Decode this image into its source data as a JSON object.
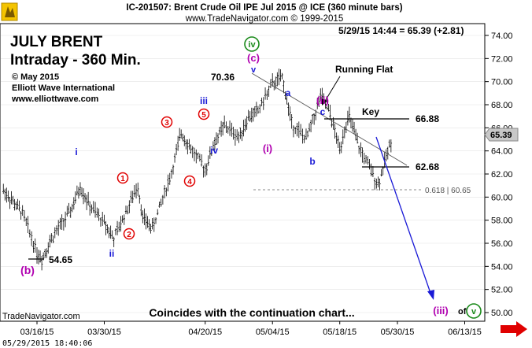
{
  "header": {
    "line1": "IC-201507:  Brent Crude Oil IPE Jul 2015 @ ICE  (360 minute bars)",
    "line2": "www.TradeNavigator.com © 1999-2015",
    "quote": "5/29/15 14:44 = 65.39 (+2.81)"
  },
  "panel": {
    "title1": "JULY BRENT",
    "title2": "Intraday - 360 Min.",
    "copyright": "© May 2015",
    "company": "Elliott Wave International",
    "website": "www.elliottwave.com"
  },
  "footer": {
    "source": "TradeNavigator.com",
    "datetime": "05/29/2015  18:40:06",
    "caption": "Coincides with the continuation chart..."
  },
  "annotations": {
    "running_flat": "Running Flat",
    "key": "Key",
    "fib": "0.618 | 60.65",
    "high_label": "70.36",
    "low_label": "54.65",
    "level_upper": "66.88",
    "level_lower": "62.68",
    "of_text": "of",
    "waves": {
      "iv": "iv",
      "c_paren": "(c)",
      "v_top": "v",
      "iii_blue": "iii",
      "iv_blue": "iv",
      "i_blue": "i",
      "ii_blue": "ii",
      "a": "a",
      "b": "b",
      "c": "c",
      "i_paren": "(i)",
      "ii_paren": "(ii)",
      "b_paren": "(b)",
      "iii_target": "(iii)",
      "v_circle": "v",
      "c1": "1",
      "c2": "2",
      "c3": "3",
      "c4": "4",
      "c5": "5"
    }
  },
  "colors": {
    "price": "#000000",
    "wave_blue": "#1a1ad6",
    "wave_magenta": "#b000b0",
    "wave_red": "#e00000",
    "wave_green": "#1a8a1a",
    "projection": "#1a1ad6",
    "price_tag": "#c8c8c8",
    "arrow": "#e00000"
  },
  "chart_data": {
    "type": "ohlc",
    "title": "Brent Crude Oil IPE Jul 2015 @ ICE (360 minute bars)",
    "ylim": [
      50,
      74
    ],
    "y_ticks": [
      "74.00",
      "72.00",
      "70.00",
      "68.00",
      "66.00",
      "64.00",
      "62.00",
      "60.00",
      "58.00",
      "56.00",
      "54.00",
      "52.00",
      "50.00"
    ],
    "last_price": "65.39",
    "x_ticks": [
      "03/16/15",
      "03/30/15",
      "04/20/15",
      "05/04/15",
      "05/18/15",
      "05/30/15",
      "06/13/15"
    ],
    "approx_price_path": [
      [
        "03/09/15",
        60.6
      ],
      [
        "03/11/15",
        59.6
      ],
      [
        "03/13/15",
        58.6
      ],
      [
        "03/16/15",
        55.2
      ],
      [
        "03/17/15",
        54.65
      ],
      [
        "03/19/15",
        56.4
      ],
      [
        "03/23/15",
        58.8
      ],
      [
        "03/25/15",
        60.9
      ],
      [
        "03/27/15",
        59.2
      ],
      [
        "03/30/15",
        57.8
      ],
      [
        "04/01/15",
        56.4
      ],
      [
        "04/06/15",
        61.0
      ],
      [
        "04/07/15",
        58.2
      ],
      [
        "04/09/15",
        57.3
      ],
      [
        "04/13/15",
        62.1
      ],
      [
        "04/15/15",
        65.6
      ],
      [
        "04/17/15",
        64.2
      ],
      [
        "04/20/15",
        62.4
      ],
      [
        "04/22/15",
        64.8
      ],
      [
        "04/24/15",
        66.2
      ],
      [
        "04/27/15",
        65.2
      ],
      [
        "04/29/15",
        66.9
      ],
      [
        "05/01/15",
        67.5
      ],
      [
        "05/04/15",
        69.8
      ],
      [
        "05/06/15",
        70.36
      ],
      [
        "05/08/15",
        66.4
      ],
      [
        "05/11/15",
        65.0
      ],
      [
        "05/13/15",
        67.4
      ],
      [
        "05/14/15",
        68.8
      ],
      [
        "05/16/15",
        67.2
      ],
      [
        "05/18/15",
        64.1
      ],
      [
        "05/19/15",
        66.0
      ],
      [
        "05/20/15",
        66.88
      ],
      [
        "05/22/15",
        64.3
      ],
      [
        "05/26/15",
        61.1
      ],
      [
        "05/27/15",
        62.5
      ],
      [
        "05/29/15",
        65.39
      ]
    ],
    "levels": [
      {
        "name": "upper key level",
        "value": 66.88
      },
      {
        "name": "lower key level",
        "value": 62.68
      },
      {
        "name": "fib 0.618 retracement",
        "value": 60.65
      }
    ],
    "projection": {
      "from": [
        "05/31/15",
        65.0
      ],
      "to": [
        "06/06/15",
        50.4
      ],
      "target_label": "(iii) of v"
    }
  }
}
